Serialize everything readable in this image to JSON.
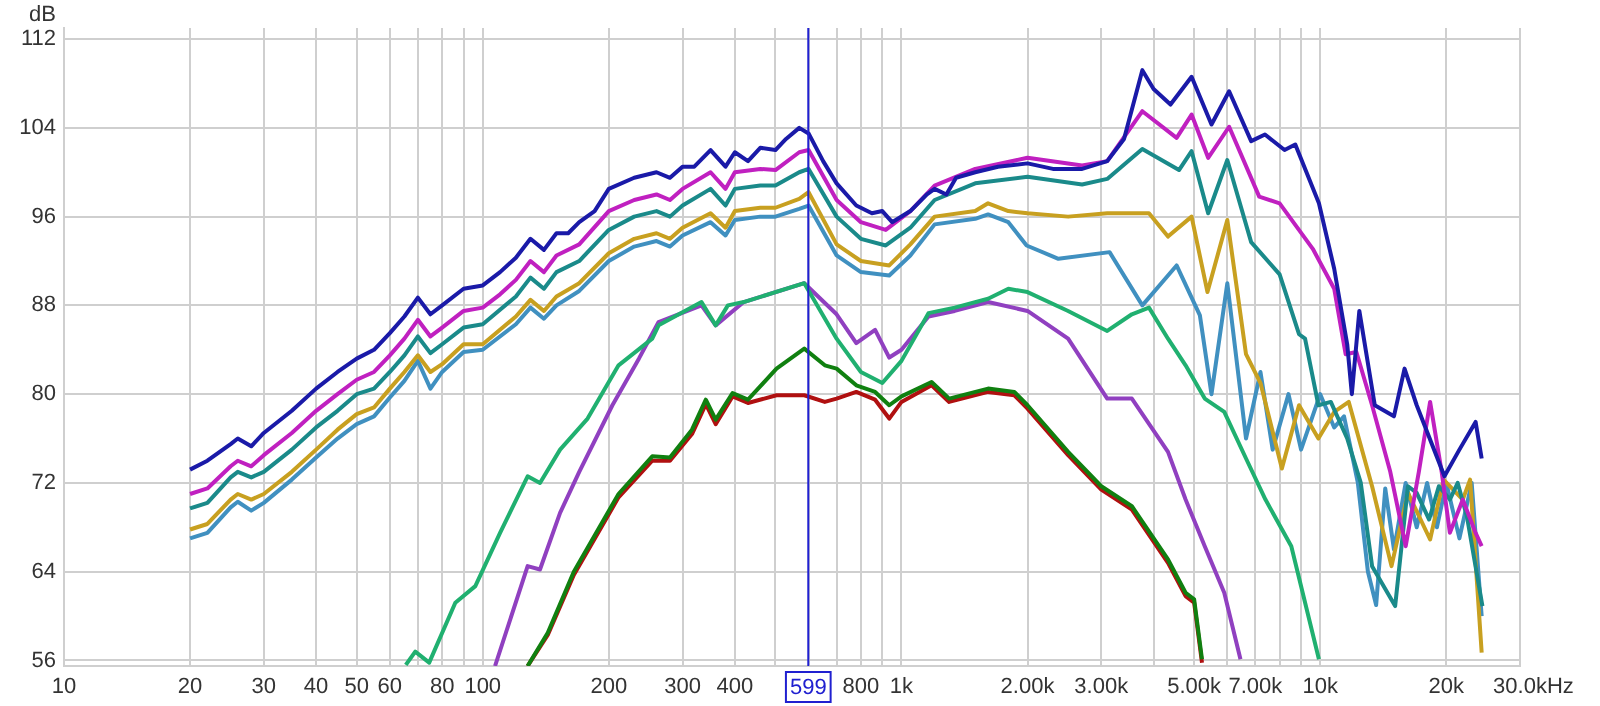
{
  "chart_data": {
    "type": "line",
    "ylabel": "dB",
    "log": "x",
    "xlim": [
      10,
      30000
    ],
    "ylim": [
      55.5,
      113
    ],
    "xticks": [
      10,
      20,
      30,
      40,
      50,
      60,
      {
        "value": 70,
        "label": null
      },
      80,
      {
        "value": 90,
        "label": null
      },
      100,
      200,
      300,
      400,
      {
        "value": 500,
        "label": null
      },
      {
        "value": 600,
        "label": null
      },
      {
        "value": 700,
        "label": null
      },
      800,
      {
        "value": 900,
        "label": null
      },
      {
        "value": 1000,
        "label": "1k"
      },
      {
        "value": 2000,
        "label": "2.00k"
      },
      {
        "value": 3000,
        "label": "3.00k"
      },
      {
        "value": 4000,
        "label": null
      },
      {
        "value": 5000,
        "label": "5.00k"
      },
      {
        "value": 6000,
        "label": null
      },
      {
        "value": 7000,
        "label": "7.00k"
      },
      {
        "value": 8000,
        "label": null
      },
      {
        "value": 9000,
        "label": null
      },
      {
        "value": 10000,
        "label": "10k"
      },
      {
        "value": 20000,
        "label": "20k"
      },
      {
        "value": 30000,
        "label": "30.0k"
      }
    ],
    "xlabel": "Hz",
    "yticks": [
      56,
      64,
      72,
      80,
      88,
      96,
      104,
      112
    ],
    "grid": true,
    "legend": false,
    "marker": "none",
    "line_style": "solid",
    "ref_lines": [
      {
        "axis": "x",
        "value": 599,
        "label": "599",
        "color": "#2020d0"
      }
    ],
    "series": [
      {
        "color": "#1a1aa8",
        "x": [
          20,
          22,
          25,
          26,
          28,
          30,
          35,
          40,
          45,
          50,
          55,
          60,
          65,
          70,
          75,
          80,
          90,
          100,
          110,
          120,
          130,
          140,
          150,
          160,
          170,
          185,
          200,
          230,
          260,
          280,
          300,
          320,
          350,
          380,
          400,
          430,
          460,
          500,
          530,
          570,
          600,
          650,
          700,
          780,
          850,
          900,
          950,
          1050,
          1150,
          1200,
          1280,
          1350,
          1500,
          1700,
          2000,
          2300,
          2700,
          3100,
          3400,
          3760,
          4000,
          4390,
          4930,
          5500,
          6060,
          6840,
          7380,
          8220,
          8720,
          9930,
          10800,
          11600,
          11900,
          12400,
          13500,
          15000,
          15900,
          17000,
          19800,
          21500,
          23500,
          24300
        ],
        "values": [
          73.2,
          74,
          75.5,
          76,
          75.3,
          76.5,
          78.5,
          80.5,
          82,
          83.2,
          84,
          85.5,
          87,
          88.7,
          87.2,
          88,
          89.5,
          89.8,
          91,
          92.3,
          94,
          93,
          94.5,
          94.5,
          95.5,
          96.5,
          98.5,
          99.5,
          100,
          99.5,
          100.5,
          100.5,
          102,
          100.5,
          101.8,
          101,
          102.2,
          102,
          103,
          104,
          103.5,
          101,
          99,
          97,
          96.3,
          96.5,
          95.5,
          96.5,
          98,
          98.5,
          98,
          99.5,
          100,
          100.5,
          100.8,
          100.3,
          100.3,
          101,
          103,
          109.2,
          107.5,
          106.1,
          108.6,
          104.3,
          107.3,
          102.8,
          103.4,
          102,
          102.5,
          97.2,
          91.3,
          84.5,
          80,
          87.5,
          79,
          78,
          82.3,
          79,
          72.6,
          75,
          77.5,
          74.2
        ]
      },
      {
        "color": "#c020c0",
        "x": [
          20,
          22,
          25,
          26,
          28,
          30,
          35,
          40,
          45,
          50,
          55,
          60,
          65,
          70,
          75,
          80,
          90,
          100,
          110,
          120,
          130,
          140,
          150,
          170,
          200,
          230,
          260,
          280,
          300,
          350,
          380,
          400,
          460,
          500,
          570,
          600,
          700,
          800,
          917,
          1050,
          1200,
          1500,
          2000,
          2700,
          3100,
          3760,
          4540,
          4930,
          5400,
          6060,
          7150,
          8000,
          9600,
          10800,
          11500,
          12200,
          13300,
          14700,
          16000,
          17200,
          18300,
          19500,
          20400,
          21900,
          23500,
          24300
        ],
        "values": [
          71,
          71.5,
          73.5,
          74,
          73.5,
          74.5,
          76.5,
          78.5,
          80,
          81.3,
          82,
          83.5,
          85,
          86.7,
          85.2,
          86,
          87.5,
          87.8,
          89,
          90.3,
          92,
          91,
          92.5,
          93.5,
          96.5,
          97.5,
          98,
          97.5,
          98.5,
          100,
          98.5,
          100,
          100.3,
          100.2,
          101.8,
          102,
          97.5,
          95.5,
          94.8,
          96.5,
          98.8,
          100.3,
          101.3,
          100.6,
          101,
          105.5,
          103.1,
          105.2,
          101.3,
          104.1,
          97.8,
          97.2,
          93.1,
          89.5,
          83.6,
          83.8,
          79,
          73,
          66.3,
          73,
          79.3,
          73,
          67.5,
          70.5,
          67.5,
          66.3
        ]
      },
      {
        "color": "#1a8a8a",
        "x": [
          20,
          22,
          25,
          26,
          28,
          30,
          35,
          40,
          45,
          50,
          55,
          60,
          65,
          70,
          75,
          80,
          90,
          100,
          120,
          130,
          140,
          150,
          170,
          200,
          230,
          260,
          280,
          300,
          350,
          380,
          400,
          460,
          500,
          570,
          600,
          700,
          800,
          917,
          1050,
          1200,
          1500,
          2000,
          2700,
          3100,
          3760,
          4600,
          4930,
          5400,
          6000,
          6840,
          8000,
          8900,
          9200,
          9900,
          10600,
          11600,
          12500,
          13300,
          15100,
          16200,
          17000,
          18200,
          19200,
          20400,
          21300,
          22400,
          24400
        ],
        "values": [
          69.7,
          70.2,
          72.5,
          73,
          72.5,
          73,
          75,
          77,
          78.5,
          80,
          80.5,
          82,
          83.5,
          85.2,
          83.7,
          84.5,
          86,
          86.3,
          88.8,
          90.5,
          89.5,
          91,
          92,
          94.8,
          96,
          96.5,
          96,
          97,
          98.5,
          97,
          98.5,
          98.8,
          98.8,
          100,
          100.3,
          96,
          94,
          93.4,
          95,
          97.5,
          99,
          99.6,
          98.9,
          99.4,
          102.1,
          100.2,
          101.9,
          96.3,
          101.1,
          93.7,
          90.8,
          85.4,
          85,
          79,
          79.3,
          76,
          72,
          64.5,
          60.9,
          71.7,
          71.1,
          68.7,
          71.7,
          70.5,
          72,
          69,
          60.9
        ]
      },
      {
        "color": "#c8a020",
        "x": [
          20,
          22,
          25,
          26,
          28,
          30,
          35,
          40,
          45,
          50,
          55,
          60,
          65,
          70,
          75,
          80,
          90,
          100,
          120,
          130,
          140,
          150,
          170,
          200,
          230,
          260,
          280,
          300,
          350,
          380,
          400,
          460,
          500,
          570,
          600,
          700,
          800,
          935,
          1050,
          1200,
          1500,
          1610,
          1800,
          2000,
          2500,
          3100,
          3900,
          4330,
          4930,
          5380,
          6000,
          6650,
          7200,
          8100,
          8900,
          9900,
          10800,
          11700,
          13300,
          14800,
          16200,
          18300,
          19700,
          21900,
          22800,
          24300
        ],
        "values": [
          67.8,
          68.3,
          70.5,
          71,
          70.5,
          71,
          73,
          75,
          76.8,
          78.2,
          78.8,
          80.5,
          82,
          83.5,
          82,
          82.7,
          84.5,
          84.5,
          87,
          88.5,
          87.5,
          88.8,
          90,
          92.7,
          94,
          94.5,
          94,
          95,
          96.3,
          95,
          96.5,
          96.8,
          96.8,
          97.6,
          98.2,
          93.5,
          92,
          91.6,
          93.5,
          96,
          96.5,
          97.2,
          96.5,
          96.3,
          96,
          96.3,
          96.3,
          94.2,
          96,
          89.2,
          95.7,
          83.6,
          81,
          73.3,
          79,
          76,
          78.4,
          79.3,
          71.7,
          64.5,
          71.1,
          66.9,
          72.3,
          70.5,
          72.3,
          56.7
        ]
      },
      {
        "color": "#4090c0",
        "x": [
          20,
          22,
          25,
          26,
          28,
          30,
          35,
          40,
          45,
          50,
          55,
          60,
          65,
          70,
          75,
          80,
          90,
          100,
          120,
          130,
          140,
          150,
          170,
          200,
          230,
          260,
          280,
          300,
          350,
          380,
          400,
          460,
          500,
          570,
          600,
          700,
          800,
          935,
          1050,
          1200,
          1500,
          1610,
          1800,
          1990,
          2370,
          3140,
          3760,
          4540,
          5160,
          5500,
          6000,
          6650,
          7200,
          7700,
          8400,
          9000,
          10000,
          10800,
          11400,
          12300,
          13000,
          13600,
          14300,
          15000,
          16000,
          17000,
          18000,
          19000,
          20000,
          21500,
          23000,
          24300
        ],
        "values": [
          67,
          67.5,
          69.8,
          70.3,
          69.5,
          70.2,
          72.3,
          74.3,
          76,
          77.3,
          78,
          79.7,
          81.2,
          83,
          80.5,
          82,
          83.8,
          84,
          86.3,
          87.8,
          86.8,
          88,
          89.3,
          92,
          93.3,
          93.8,
          93.3,
          94.3,
          95.5,
          94.3,
          95.7,
          96,
          96,
          96.7,
          97,
          92.5,
          91,
          90.7,
          92.5,
          95.3,
          95.8,
          96.2,
          95.5,
          93.4,
          92.2,
          92.8,
          88,
          91.6,
          87.1,
          80,
          90,
          76,
          82,
          75,
          80,
          75,
          80,
          77,
          78,
          72,
          64,
          61,
          71.5,
          66,
          72,
          68,
          72,
          68,
          72,
          67,
          72,
          60
        ]
      },
      {
        "color": "#20b070",
        "x": [
          65.5,
          69,
          74.5,
          86,
          96,
          110,
          128,
          137,
          153,
          178,
          211,
          254,
          263,
          333,
          360,
          385,
          420,
          586,
          700,
          800,
          900,
          1000,
          1160,
          1340,
          1610,
          1800,
          2000,
          2500,
          3100,
          3550,
          3900,
          4330,
          4770,
          5300,
          5900,
          6650,
          7400,
          8530,
          9930
        ],
        "values": [
          55.6,
          56.8,
          55.8,
          61.2,
          62.7,
          67.5,
          72.6,
          72,
          75,
          77.8,
          82.6,
          85,
          86.2,
          88.3,
          86.2,
          88,
          88.3,
          90,
          85,
          82,
          81,
          83,
          87.3,
          87.8,
          88.6,
          89.5,
          89.2,
          87.5,
          85.7,
          87.2,
          87.8,
          85,
          82.6,
          79.6,
          78.4,
          74.2,
          70.5,
          66.3,
          56.1
        ]
      },
      {
        "color": "#9040c0",
        "x": [
          107,
          128,
          137,
          153,
          170,
          204,
          236,
          263,
          333,
          360,
          420,
          586,
          700,
          780,
          865,
          935,
          1000,
          1160,
          1340,
          1610,
          2000,
          2500,
          3100,
          3550,
          4330,
          4770,
          5300,
          5900,
          6450
        ],
        "values": [
          55.5,
          64.5,
          64.2,
          69.3,
          73,
          79,
          83.2,
          86.5,
          88,
          86.2,
          88.3,
          90,
          87.2,
          84.6,
          85.8,
          83.3,
          84,
          87,
          87.5,
          88.3,
          87.5,
          85,
          79.6,
          79.6,
          74.8,
          70.5,
          66.3,
          62.1,
          56.1
        ]
      },
      {
        "color": "#108010",
        "x": [
          128,
          143,
          165,
          211,
          254,
          280,
          316,
          341,
          360,
          395,
          430,
          503,
          586,
          656,
          700,
          780,
          865,
          935,
          1000,
          1180,
          1300,
          1610,
          1860,
          2000,
          2500,
          3000,
          3550,
          4330,
          4770,
          5000,
          5220
        ],
        "values": [
          55.5,
          58.5,
          64,
          71,
          74.4,
          74.3,
          76.8,
          79.5,
          77.7,
          80.1,
          79.5,
          82.3,
          84.1,
          82.6,
          82.3,
          80.8,
          80.2,
          79,
          79.8,
          81.1,
          79.6,
          80.5,
          80.2,
          79,
          74.8,
          71.7,
          69.9,
          65.1,
          62.1,
          61.5,
          56.1
        ]
      },
      {
        "color": "#b01010",
        "x": [
          128,
          143,
          165,
          211,
          254,
          280,
          316,
          341,
          360,
          395,
          430,
          503,
          586,
          656,
          700,
          780,
          865,
          935,
          1000,
          1180,
          1300,
          1610,
          1860,
          2000,
          2500,
          3000,
          3550,
          4330,
          4770,
          5000,
          5220
        ],
        "values": [
          55.5,
          58.3,
          63.7,
          70.7,
          74,
          74,
          76.4,
          79.1,
          77.3,
          79.8,
          79.2,
          79.9,
          79.9,
          79.3,
          79.6,
          80.2,
          79.5,
          77.8,
          79.3,
          80.8,
          79.3,
          80.2,
          79.9,
          78.7,
          74.5,
          71.4,
          69.6,
          64.8,
          61.8,
          61.2,
          55.8
        ]
      }
    ]
  }
}
